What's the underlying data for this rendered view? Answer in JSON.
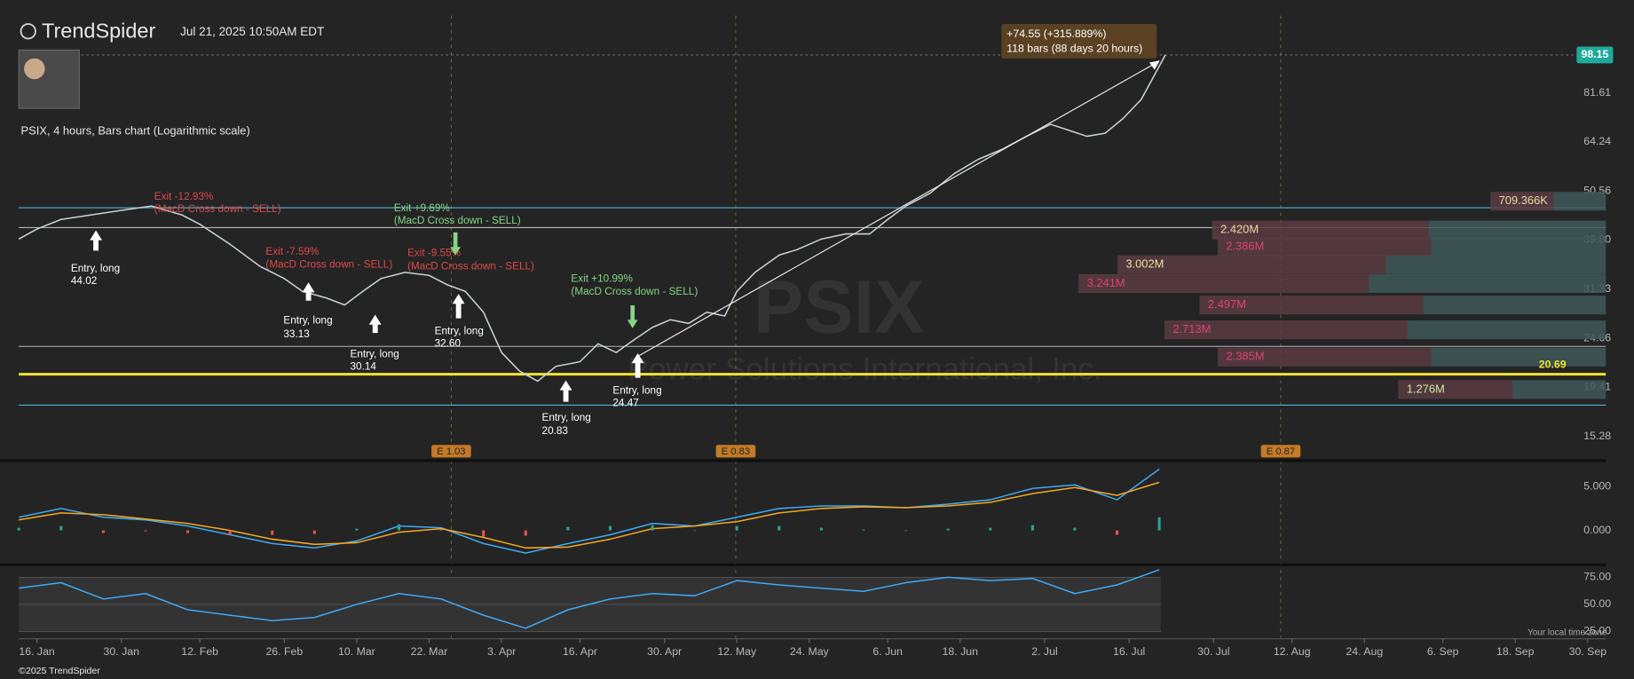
{
  "header": {
    "brand": "TrendSpider",
    "timestamp": "Jul 21, 2025 10:50AM EDT",
    "chart_label": "PSIX, 4 hours, Bars chart (Logarithmic scale)",
    "watermark_symbol": "PSIX",
    "watermark_name": "Power Solutions International, Inc.",
    "local_time_note": "Your local time zone",
    "copyright": "©2025 TrendSpider"
  },
  "annotations": {
    "measure": {
      "change": "+74.55 (+315.889%)",
      "span": "118 bars (88 days 20 hours)"
    },
    "entries": [
      {
        "text": "Entry, long",
        "price": 44.02
      },
      {
        "text": "Entry, long",
        "price": 33.13
      },
      {
        "text": "Entry, long",
        "price": 30.14
      },
      {
        "text": "Entry, long",
        "price": 32.6,
        "price_label": "32.60"
      },
      {
        "text": "Entry, long",
        "price": 20.83
      },
      {
        "text": "Entry, long",
        "price": 24.47
      }
    ],
    "exits": [
      {
        "text": "Exit -12.93%",
        "reason": "(MacD Cross down - SELL)"
      },
      {
        "text": "Exit -7.59%",
        "reason": "(MacD Cross down - SELL)"
      },
      {
        "text": "Exit -9.55%",
        "reason": "(MacD Cross down - SELL)"
      },
      {
        "text": "Exit +9.69%",
        "reason": "(MacD Cross down - SELL)"
      },
      {
        "text": "Exit +10.99%",
        "reason": "(MacD Cross down - SELL)"
      }
    ],
    "earnings": [
      "E 1.03",
      "E 0.83",
      "E 0.87"
    ]
  },
  "chart_data": [
    {
      "type": "line",
      "log_scale": true,
      "grid": false,
      "xlim": [
        13,
        276
      ],
      "ylim": [
        13.72,
        118.9
      ],
      "yticks": [
        15.28,
        19.41,
        24.66,
        31.33,
        {
          "value": 39.8,
          "label": "39.80"
        },
        50.56,
        64.24,
        81.61
      ],
      "last_price": 98.15,
      "highlight_level": 20.69,
      "levels": [
        {
          "value": 46.6,
          "color": "#4fb3d9"
        },
        {
          "value": 42.3,
          "color": "#b5b5b5"
        },
        {
          "value": 23.7,
          "color": "#b5b5b5"
        },
        {
          "value": 17.8,
          "color": "#4fb3d9"
        }
      ],
      "series": [
        {
          "name": "PSIX",
          "color": "#c9d3d8",
          "x": [
            13,
            16,
            20,
            25,
            30,
            35,
            40,
            43,
            48,
            53,
            57,
            60,
            64,
            67,
            70,
            73,
            77,
            81,
            84,
            87,
            90,
            93,
            96,
            99,
            102,
            106,
            109,
            112,
            115,
            118,
            121,
            124,
            127,
            130,
            132,
            135,
            139,
            142,
            146,
            150,
            154,
            157,
            160,
            164,
            168,
            172,
            176,
            180,
            184,
            187,
            190,
            193,
            196,
            199,
            201,
            203
          ],
          "values": [
            40,
            42,
            44,
            45,
            46,
            47,
            45,
            43,
            39,
            35,
            33,
            31,
            30,
            29,
            31,
            33,
            34,
            33.5,
            32,
            31,
            28,
            23,
            21,
            20,
            21.5,
            22,
            24,
            23,
            24.5,
            26,
            27,
            26.5,
            28,
            27.5,
            31,
            34,
            37,
            38,
            40,
            41,
            41,
            44,
            47,
            50,
            55,
            59,
            62,
            66,
            70,
            68,
            66,
            67,
            72,
            79,
            88,
            98.15
          ]
        }
      ],
      "profile": [
        {
          "price": 48.1,
          "value": 709366,
          "value_label": "709.366K",
          "label_color": "#e8d9a0"
        },
        {
          "price": 41.8,
          "value": 2420000,
          "value_label": "2.420M",
          "label_color": "#e8d9a0"
        },
        {
          "price": 38.5,
          "value": 2386000,
          "value_label": "2.386M",
          "label_color": "#e0407a"
        },
        {
          "price": 35.3,
          "value": 3002000,
          "value_label": "3.002M",
          "label_color": "#e8e0a0"
        },
        {
          "price": 32.2,
          "value": 3241000,
          "value_label": "3.241M",
          "label_color": "#e0407a"
        },
        {
          "price": 29.0,
          "value": 2497000,
          "value_label": "2.497M",
          "label_color": "#e0407a"
        },
        {
          "price": 25.7,
          "value": 2713000,
          "value_label": "2.713M",
          "label_color": "#e0407a"
        },
        {
          "price": 22.5,
          "value": 2385000,
          "value_label": "2.385M",
          "label_color": "#e0407a"
        },
        {
          "price": 19.2,
          "value": 1276000,
          "value_label": "1.276M",
          "label_color": "#cde8a0"
        }
      ]
    },
    {
      "type": "line",
      "grid": false,
      "xlim": [
        13,
        276
      ],
      "ylim": [
        -3.69,
        7.62
      ],
      "yticks": [
        {
          "value": 5,
          "label": "5.000"
        },
        {
          "value": 0,
          "label": "0.000"
        }
      ],
      "series": [
        {
          "name": "MACD",
          "color": "#3fa9f5",
          "x": [
            13,
            20,
            27,
            34,
            41,
            48,
            55,
            62,
            69,
            76,
            83,
            90,
            97,
            104,
            111,
            118,
            125,
            132,
            139,
            146,
            153,
            160,
            167,
            174,
            181,
            188,
            195,
            202
          ],
          "values": [
            1.5,
            2.5,
            1.5,
            1.2,
            0.5,
            -0.5,
            -1.5,
            -2,
            -1.2,
            0.5,
            0.3,
            -1.5,
            -2.6,
            -1.5,
            -0.5,
            0.8,
            0.5,
            1.5,
            2.5,
            2.8,
            2.8,
            2.6,
            3.0,
            3.5,
            4.8,
            5.2,
            3.5,
            7.0
          ]
        },
        {
          "name": "Signal",
          "color": "#f5a623",
          "x": [
            13,
            20,
            27,
            34,
            41,
            48,
            55,
            62,
            69,
            76,
            83,
            90,
            97,
            104,
            111,
            118,
            125,
            132,
            139,
            146,
            153,
            160,
            167,
            174,
            181,
            188,
            195,
            202
          ],
          "values": [
            1.2,
            2.0,
            1.8,
            1.3,
            0.8,
            0,
            -1,
            -1.6,
            -1.4,
            -0.2,
            0.2,
            -0.8,
            -2.0,
            -1.9,
            -1.0,
            0.2,
            0.5,
            1.0,
            2.0,
            2.5,
            2.7,
            2.6,
            2.8,
            3.2,
            4.2,
            4.9,
            4.0,
            5.5
          ]
        },
        {
          "name": "Histogram",
          "type": "bar",
          "color": "#26a69a",
          "negative_color": "#ef5350",
          "x": [
            13,
            20,
            27,
            34,
            41,
            48,
            55,
            62,
            69,
            76,
            83,
            90,
            97,
            104,
            111,
            118,
            125,
            132,
            139,
            146,
            153,
            160,
            167,
            174,
            181,
            188,
            195,
            202
          ],
          "values": [
            0.3,
            0.5,
            -0.3,
            -0.1,
            -0.3,
            -0.5,
            -0.5,
            -0.4,
            0.2,
            0.7,
            0.1,
            -0.7,
            -0.6,
            0.4,
            0.5,
            0.6,
            0,
            0.5,
            0.5,
            0.3,
            0.1,
            0,
            0.2,
            0.3,
            0.6,
            0.3,
            -0.5,
            1.5
          ]
        }
      ]
    },
    {
      "type": "line",
      "grid": true,
      "xlim": [
        13,
        276
      ],
      "ylim": [
        19.2,
        83.7
      ],
      "yticks": [
        {
          "value": 75,
          "label": "75.00"
        },
        {
          "value": 50,
          "label": "50.00"
        },
        {
          "value": 25,
          "label": "25.00"
        }
      ],
      "xticks": [
        {
          "value": 16,
          "label": "16. Jan"
        },
        {
          "value": 30,
          "label": "30. Jan"
        },
        {
          "value": 43,
          "label": "12. Feb"
        },
        {
          "value": 57,
          "label": "26. Feb"
        },
        {
          "value": 69,
          "label": "10. Mar"
        },
        {
          "value": 81,
          "label": "22. Mar"
        },
        {
          "value": 93,
          "label": "3. Apr"
        },
        {
          "value": 106,
          "label": "16. Apr"
        },
        {
          "value": 120,
          "label": "30. Apr"
        },
        {
          "value": 132,
          "label": "12. May"
        },
        {
          "value": 144,
          "label": "24. May"
        },
        {
          "value": 157,
          "label": "6. Jun"
        },
        {
          "value": 169,
          "label": "18. Jun"
        },
        {
          "value": 183,
          "label": "2. Jul"
        },
        {
          "value": 197,
          "label": "16. Jul"
        },
        {
          "value": 211,
          "label": "30. Jul"
        },
        {
          "value": 224,
          "label": "12. Aug"
        },
        {
          "value": 236,
          "label": "24. Aug"
        },
        {
          "value": 249,
          "label": "6. Sep"
        },
        {
          "value": 261,
          "label": "18. Sep"
        },
        {
          "value": 273,
          "label": "30. Sep"
        }
      ],
      "series": [
        {
          "name": "RSI",
          "color": "#3fa9f5",
          "x": [
            13,
            20,
            27,
            34,
            41,
            48,
            55,
            62,
            69,
            76,
            83,
            90,
            97,
            104,
            111,
            118,
            125,
            132,
            139,
            146,
            153,
            160,
            167,
            174,
            181,
            188,
            195,
            202
          ],
          "values": [
            65,
            70,
            55,
            60,
            45,
            40,
            35,
            38,
            50,
            60,
            55,
            40,
            28,
            45,
            55,
            60,
            58,
            72,
            68,
            65,
            62,
            70,
            75,
            72,
            74,
            60,
            68,
            82
          ]
        }
      ]
    }
  ]
}
